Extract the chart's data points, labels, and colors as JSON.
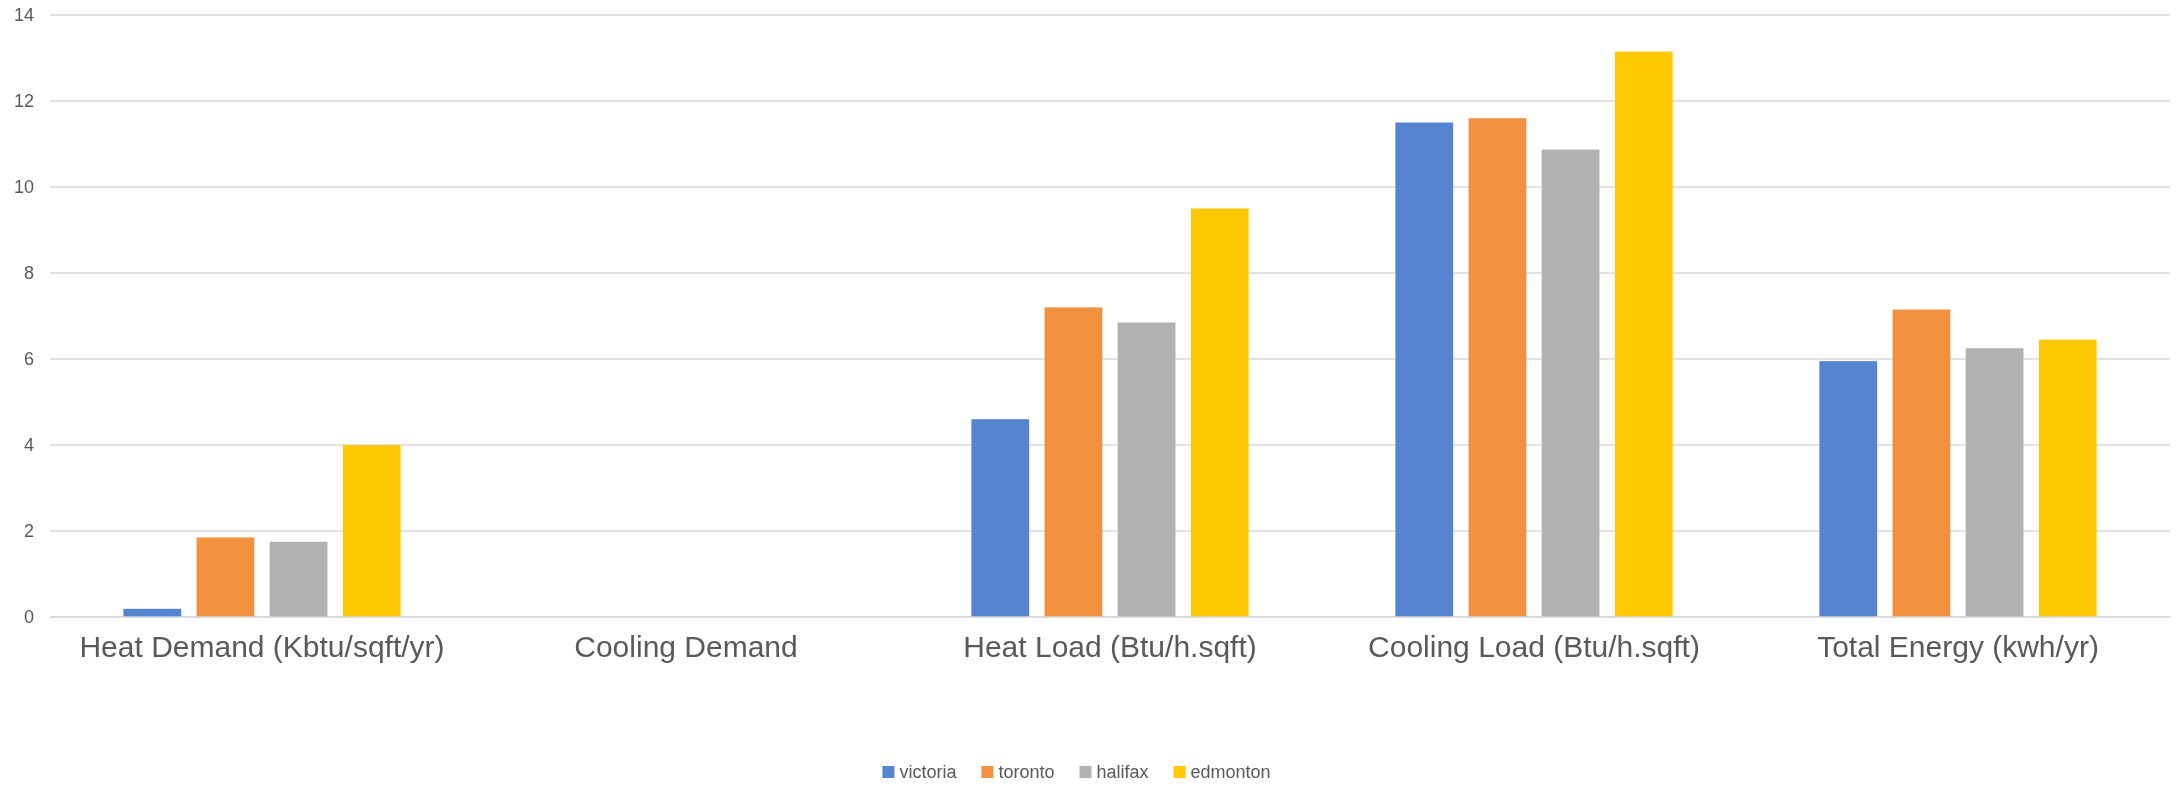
{
  "chart_data": {
    "type": "bar",
    "categories": [
      "Heat Demand (Kbtu/sqft/yr)",
      "Cooling Demand",
      "Heat Load (Btu/h.sqft)",
      "Cooling Load (Btu/h.sqft)",
      "Total Energy (kwh/yr)"
    ],
    "series": [
      {
        "name": "victoria",
        "color": "#5585d0",
        "values": [
          0.19,
          0,
          4.6,
          11.5,
          5.95
        ]
      },
      {
        "name": "toronto",
        "color": "#f29240",
        "values": [
          1.85,
          0,
          7.2,
          11.6,
          7.15
        ]
      },
      {
        "name": "halifax",
        "color": "#b1b1b1",
        "values": [
          1.75,
          0,
          6.85,
          10.87,
          6.25
        ]
      },
      {
        "name": "edmonton",
        "color": "#ffc800",
        "values": [
          4.0,
          0,
          9.5,
          13.15,
          6.45
        ]
      }
    ],
    "ylim": [
      0,
      14
    ],
    "yticks": [
      0,
      2,
      4,
      6,
      8,
      10,
      12,
      14
    ],
    "grid": "y",
    "legend": "bottom"
  }
}
